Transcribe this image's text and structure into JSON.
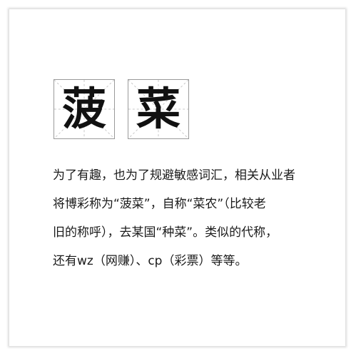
{
  "title_chars": [
    "菠",
    "菜"
  ],
  "body": {
    "lines": [
      "为了有趣，也为了规避敏感词汇，相关从业者",
      "将博彩称为“菠菜”，自称“菜农”（比较老",
      "旧的称呼），去某国“种菜”。类似的代称，",
      "还有wz（网赚）、cp（彩票）等等。"
    ]
  }
}
